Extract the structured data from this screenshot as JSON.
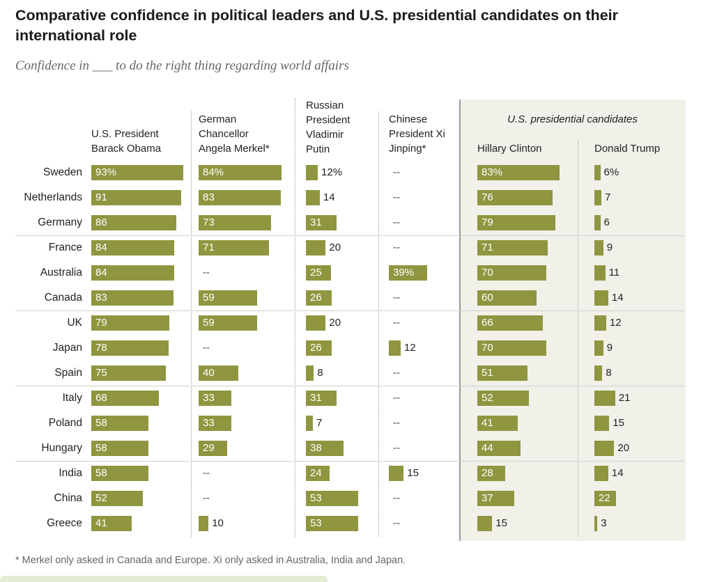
{
  "title": "Comparative confidence in political leaders and U.S. presidential candidates on their international role",
  "subtitle": "Confidence in ___ to do the right thing regarding world affairs",
  "group_label": "U.S. presidential candidates",
  "footnote": "* Merkel only asked in Canada and Europe. Xi only asked in Australia, India and Japan.",
  "colors": {
    "bar": "#8f963f",
    "candidate_bg": "#f1f1ea"
  },
  "chart_data": {
    "type": "bar",
    "orientation": "horizontal",
    "unit": "%",
    "missing_symbol": "--",
    "categories": [
      "Sweden",
      "Netherlands",
      "Germany",
      "France",
      "Australia",
      "Canada",
      "UK",
      "Japan",
      "Spain",
      "Italy",
      "Poland",
      "Hungary",
      "India",
      "China",
      "Greece"
    ],
    "series": [
      {
        "name": "U.S. President Barack Obama",
        "header_lines": [
          "U.S. President",
          "Barack Obama"
        ],
        "values": [
          93,
          91,
          86,
          84,
          84,
          83,
          79,
          78,
          75,
          68,
          58,
          58,
          58,
          52,
          41
        ]
      },
      {
        "name": "German Chancellor Angela Merkel*",
        "header_lines": [
          "German",
          "Chancellor",
          "Angela Merkel*"
        ],
        "values": [
          84,
          83,
          73,
          71,
          null,
          59,
          59,
          null,
          40,
          33,
          33,
          29,
          null,
          null,
          10
        ]
      },
      {
        "name": "Russian President Vladimir Putin",
        "header_lines": [
          "Russian",
          "President",
          "Vladimir",
          "Putin"
        ],
        "values": [
          12,
          14,
          31,
          20,
          25,
          26,
          20,
          26,
          8,
          31,
          7,
          38,
          24,
          53,
          53
        ]
      },
      {
        "name": "Chinese President Xi Jinping*",
        "header_lines": [
          "Chinese",
          "President Xi",
          "Jinping*"
        ],
        "values": [
          null,
          null,
          null,
          null,
          39,
          null,
          null,
          12,
          null,
          null,
          null,
          null,
          15,
          null,
          null
        ]
      },
      {
        "name": "Hillary Clinton",
        "header_lines": [
          "Hillary Clinton"
        ],
        "values": [
          83,
          76,
          79,
          71,
          70,
          60,
          66,
          70,
          51,
          52,
          41,
          44,
          28,
          37,
          15
        ]
      },
      {
        "name": "Donald Trump",
        "header_lines": [
          "Donald Trump"
        ],
        "values": [
          6,
          7,
          6,
          9,
          11,
          14,
          12,
          9,
          8,
          21,
          15,
          20,
          14,
          22,
          3
        ]
      }
    ]
  }
}
